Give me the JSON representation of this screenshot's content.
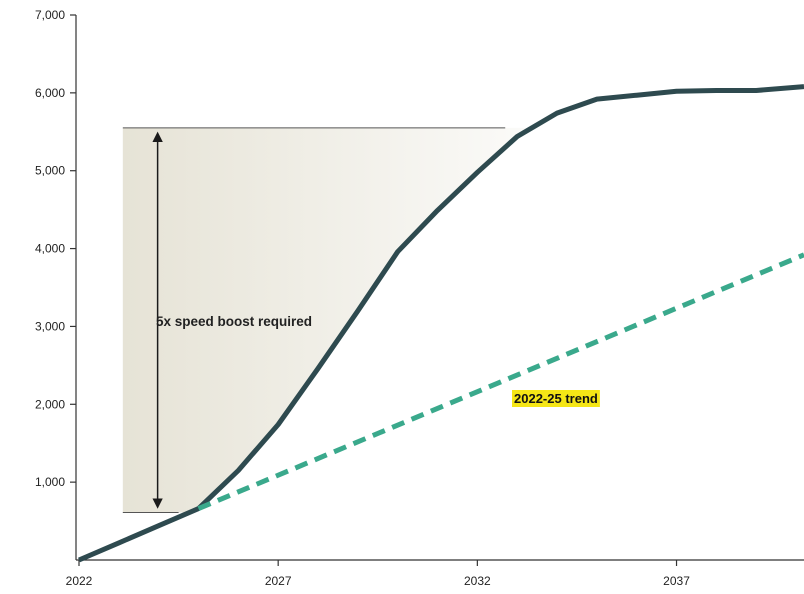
{
  "chart_data": {
    "type": "line",
    "title": "",
    "xlabel": "",
    "ylabel": "",
    "xlim": [
      2022,
      2040.2
    ],
    "ylim": [
      0,
      7000
    ],
    "x_ticks": [
      2022,
      2027,
      2032,
      2037
    ],
    "x_tick_labels": [
      "2022",
      "2027",
      "2032",
      "2037"
    ],
    "y_ticks": [
      1000,
      2000,
      3000,
      4000,
      5000,
      6000,
      7000
    ],
    "y_tick_labels": [
      "1,000",
      "2,000",
      "3,000",
      "4,000",
      "5,000",
      "6,000",
      "7,000"
    ],
    "grid": false,
    "legend": "none",
    "series": [
      {
        "style": "solid",
        "color": "#2e4a4f",
        "x": [
          2022,
          2023,
          2024,
          2025,
          2026,
          2027,
          2028,
          2029,
          2030,
          2031,
          2032,
          2033,
          2034,
          2035,
          2036,
          2037,
          2038,
          2039,
          2040.2
        ],
        "y": [
          0,
          220,
          440,
          660,
          1150,
          1740,
          2460,
          3200,
          3960,
          4490,
          4980,
          5440,
          5740,
          5920,
          5970,
          6020,
          6030,
          6030,
          6080
        ]
      },
      {
        "name": "2022-25 trend",
        "style": "dashed",
        "color": "#3aa98c",
        "x": [
          2025,
          2040.2
        ],
        "y": [
          660,
          3920
        ]
      }
    ],
    "annotations": [
      {
        "text": "5x speed boost required",
        "arrow_from": 610,
        "arrow_to": 5550,
        "shaded_region": {
          "x_start": 2023.1,
          "x_end": 2032.7,
          "y_low": 610,
          "y_high": 5550
        }
      }
    ],
    "label_highlight_color": "#f5e616"
  }
}
